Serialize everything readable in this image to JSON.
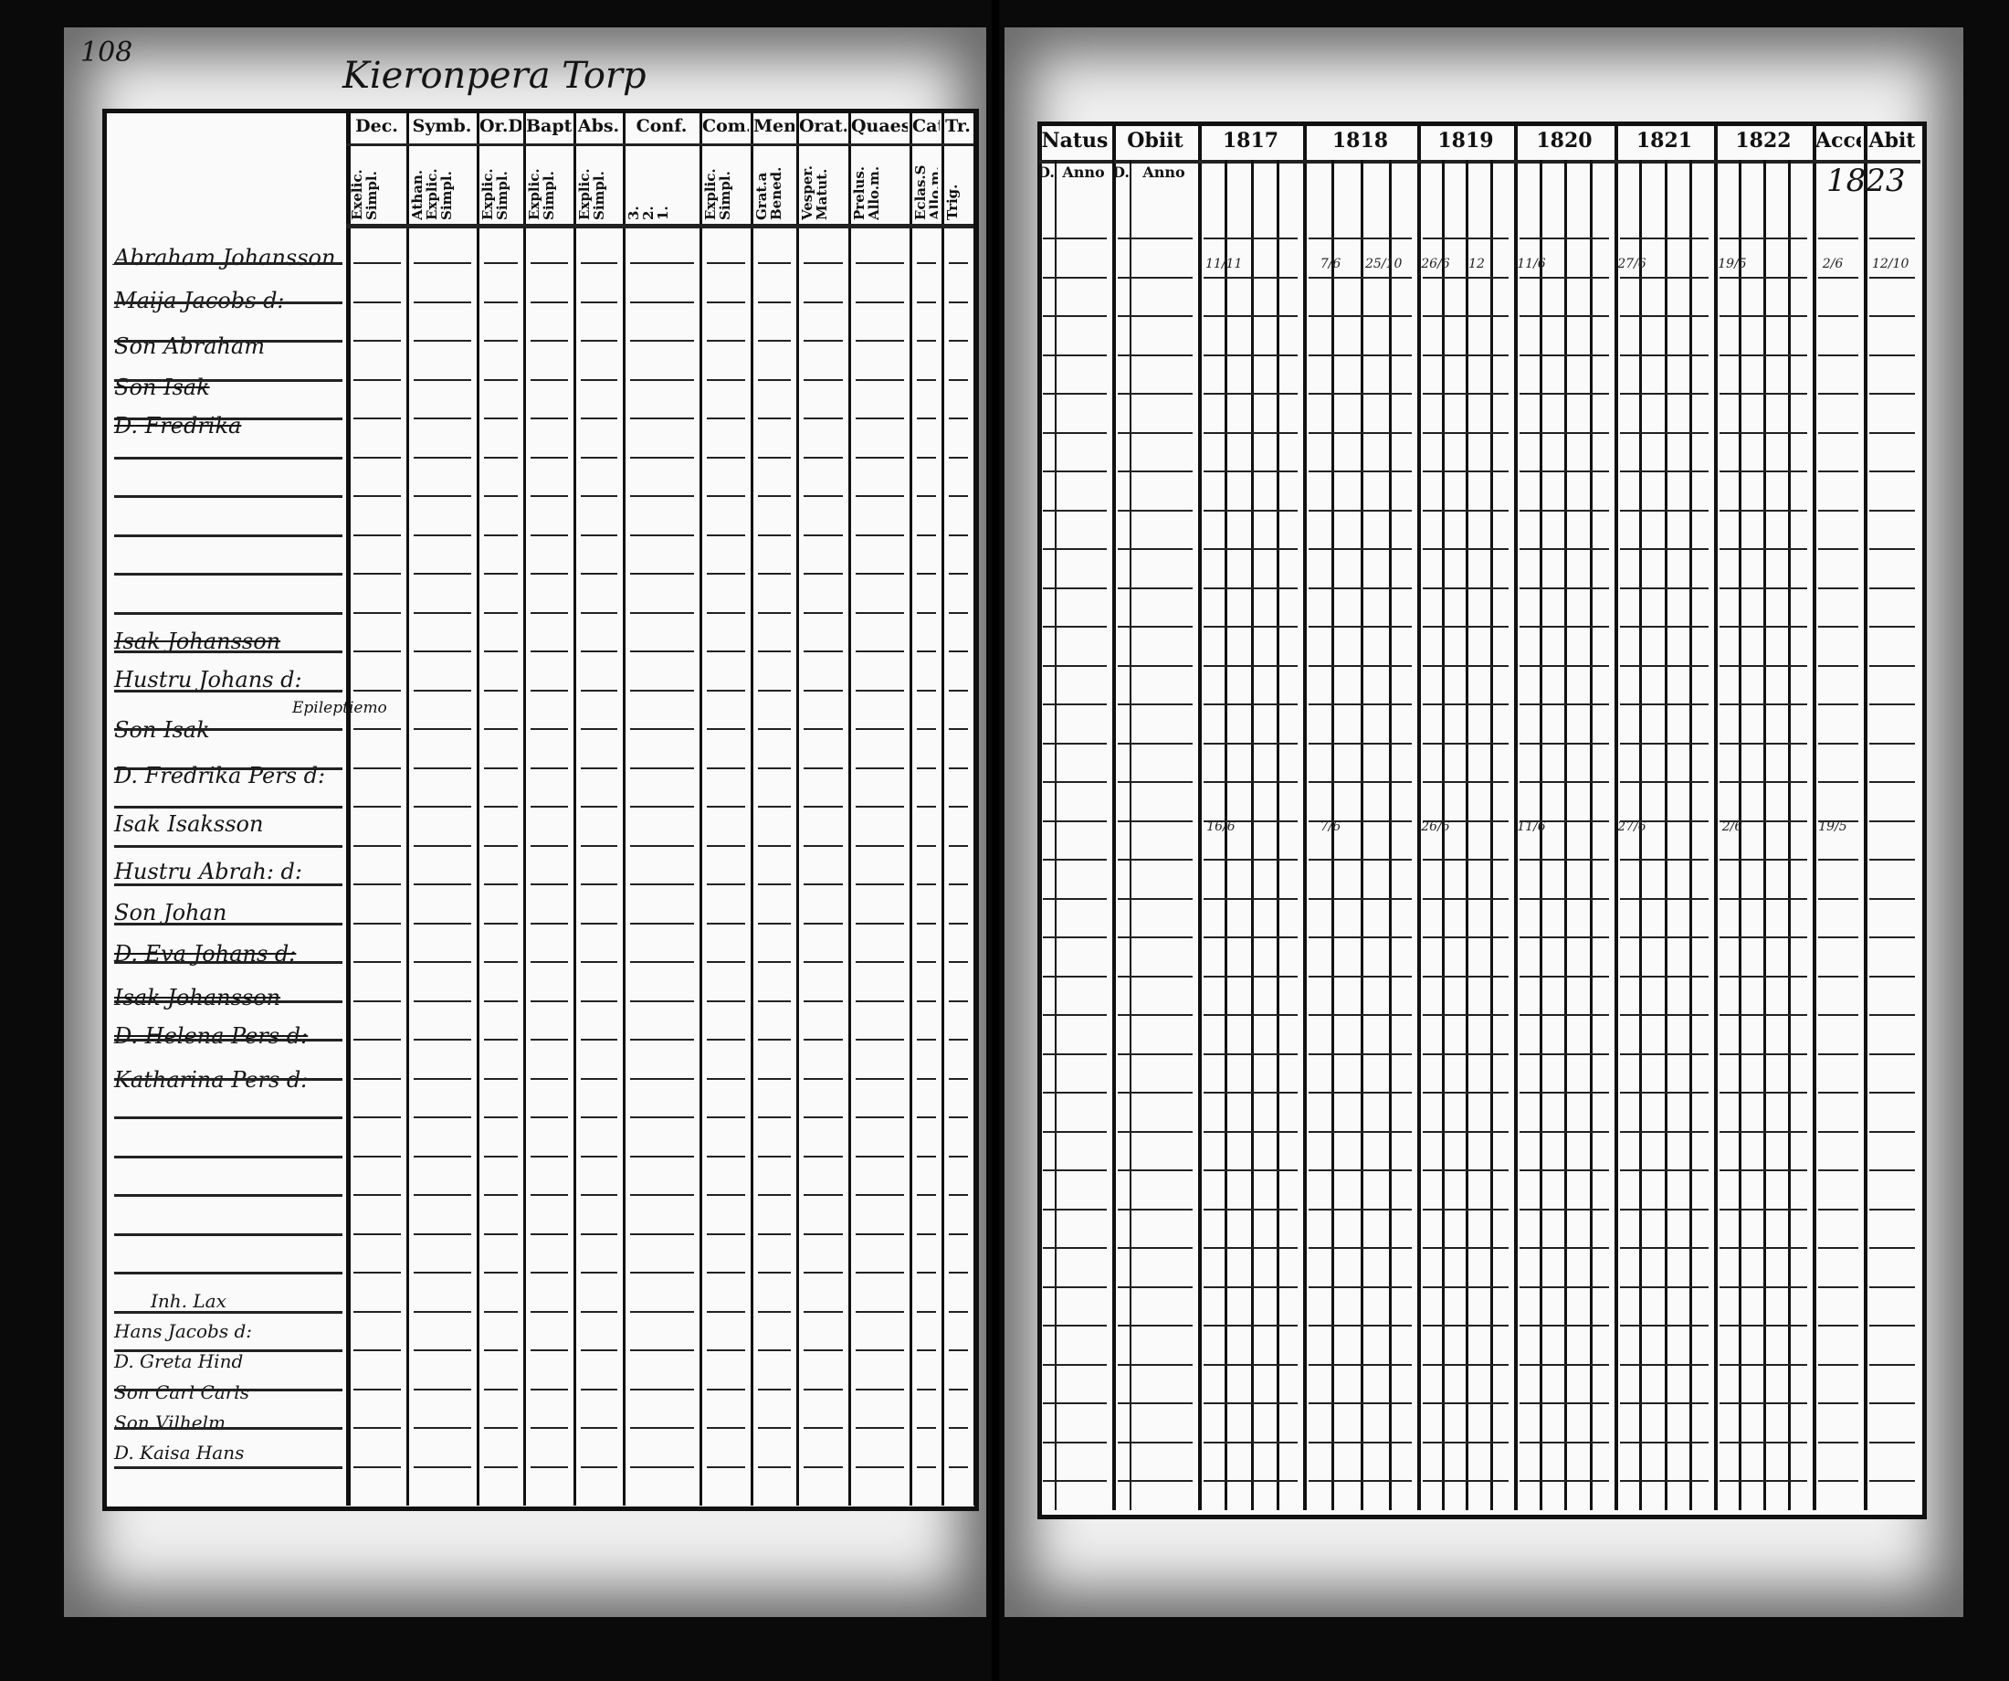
{
  "page_number": "108",
  "title": "Kieronpera Torp",
  "left_table": {
    "headers": [
      {
        "top": "Dec.",
        "sub": "Exelic.\nSimpl."
      },
      {
        "top": "Symb.",
        "sub": "Athan.\nExplic.\nSimpl."
      },
      {
        "top": "Or.D",
        "sub": "Explic.\nSimpl."
      },
      {
        "top": "Bapt.",
        "sub": "Explic.\nSimpl."
      },
      {
        "top": "Abs.",
        "sub": "Explic.\nSimpl."
      },
      {
        "top": "Conf.",
        "sub": "3.\n2.\n1."
      },
      {
        "top": "Com.D",
        "sub": "Explic.\nSimpl."
      },
      {
        "top": "Mens.",
        "sub": "Grat.a\nBened."
      },
      {
        "top": "Orat.",
        "sub": "Vesper.\nMatut."
      },
      {
        "top": "Quaest.",
        "sub": "Prelus.\nAllo.m."
      },
      {
        "top": "Cat.",
        "sub": "Eclas.S\nAllo.m."
      },
      {
        "top": "Tr.",
        "sub": "Trig."
      }
    ],
    "names": [
      "Abraham Johansson",
      "Maija Jacobs d:",
      "Son Abraham",
      "Son Isak",
      "D. Fredrika",
      "Isak Johansson",
      "Hustru Johans d:",
      "Son Isak",
      "D. Fredrika Pers d:",
      "Isak Isaksson",
      "Hustru Abrah: d:",
      "Son Johan",
      "D. Eva Johans d:",
      "Isak Johansson",
      "D. Helena Pers d:",
      "Katharina Pers d:",
      "Inh. Lax",
      "Hans Jacobs d:",
      "D. Greta Hind",
      "Son Carl Carls",
      "Son Vilhelm",
      "D. Kaisa Hans"
    ],
    "margin_note": "Epileptiemo"
  },
  "right_table": {
    "headers": [
      "Natus",
      "Obiit",
      "1817",
      "1818",
      "1819",
      "1820",
      "1821",
      "1822",
      "Accel.",
      "Abit"
    ],
    "subheaders": [
      "D.",
      "Anno",
      "D.",
      "Anno"
    ],
    "year_note": "1823",
    "entries": [
      {
        "row": 0,
        "col": "1817",
        "text": "11/11"
      },
      {
        "row": 0,
        "col": "1818",
        "text": "7/6"
      },
      {
        "row": 0,
        "col": "1818b",
        "text": "25/10"
      },
      {
        "row": 0,
        "col": "1819",
        "text": "26/6"
      },
      {
        "row": 0,
        "col": "1819b",
        "text": "12"
      },
      {
        "row": 0,
        "col": "1820",
        "text": "11/6"
      },
      {
        "row": 0,
        "col": "1821",
        "text": "27/6"
      },
      {
        "row": 0,
        "col": "1822",
        "text": "19/5"
      },
      {
        "row": 0,
        "col": "Accel",
        "text": "2/6"
      },
      {
        "row": 0,
        "col": "Abit",
        "text": "12/10"
      },
      {
        "row": 9,
        "col": "1817",
        "text": "16/6"
      },
      {
        "row": 9,
        "col": "1818",
        "text": "7/6"
      },
      {
        "row": 9,
        "col": "1819",
        "text": "26/6"
      },
      {
        "row": 9,
        "col": "1820",
        "text": "11/6"
      },
      {
        "row": 9,
        "col": "1821",
        "text": "27/6"
      },
      {
        "row": 9,
        "col": "1822",
        "text": "2/6"
      },
      {
        "row": 9,
        "col": "Accel",
        "text": "19/5"
      }
    ]
  }
}
